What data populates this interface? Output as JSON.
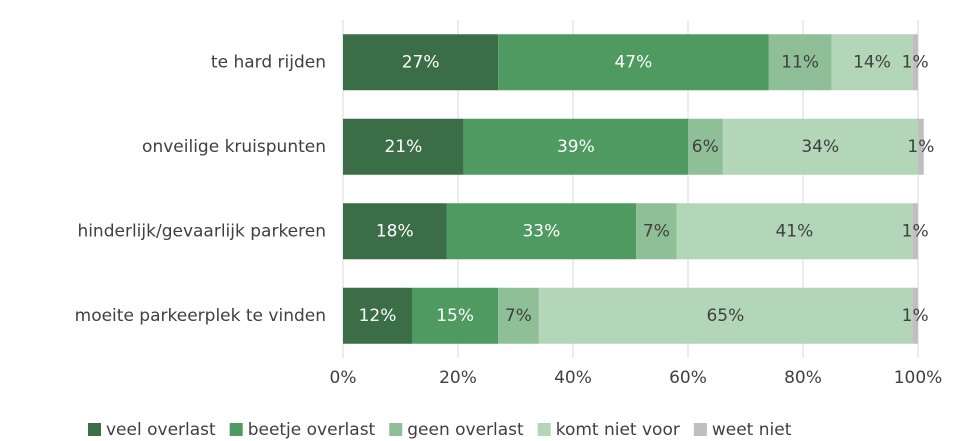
{
  "chart_data": {
    "type": "stacked-bar-horizontal",
    "categories": [
      "te hard rijden",
      "onveilige kruispunten",
      "hinderlijk/gevaarlijk parkeren",
      "moeite parkeerplek te vinden"
    ],
    "series": [
      {
        "name": "veel overlast",
        "color": "#3b6e47",
        "values": [
          27,
          21,
          18,
          12
        ],
        "value_labels": [
          "27%",
          "21%",
          "18%",
          "12%"
        ]
      },
      {
        "name": "beetje overlast",
        "color": "#4e9a60",
        "values": [
          47,
          39,
          33,
          15
        ],
        "value_labels": [
          "47%",
          "39%",
          "33%",
          "15%"
        ]
      },
      {
        "name": "geen overlast",
        "color": "#8fbf96",
        "values": [
          11,
          6,
          7,
          7
        ],
        "value_labels": [
          "11%",
          "6%",
          "7%",
          "7%"
        ]
      },
      {
        "name": "komt niet voor",
        "color": "#b3d6b9",
        "values": [
          14,
          34,
          41,
          65
        ],
        "value_labels": [
          "14%",
          "34%",
          "41%",
          "65%"
        ]
      },
      {
        "name": "weet niet",
        "color": "#bfbfbf",
        "values": [
          1,
          1,
          1,
          1
        ],
        "value_labels": [
          "1%",
          "1%",
          "1%",
          "1%"
        ]
      }
    ],
    "xlim": [
      0,
      100
    ],
    "xticks": [
      {
        "value": 0,
        "label": "0%"
      },
      {
        "value": 20,
        "label": "20%"
      },
      {
        "value": 40,
        "label": "40%"
      },
      {
        "value": 60,
        "label": "60%"
      },
      {
        "value": 80,
        "label": "80%"
      },
      {
        "value": 100,
        "label": "100%"
      }
    ],
    "grid": true,
    "legend": "bottom"
  }
}
